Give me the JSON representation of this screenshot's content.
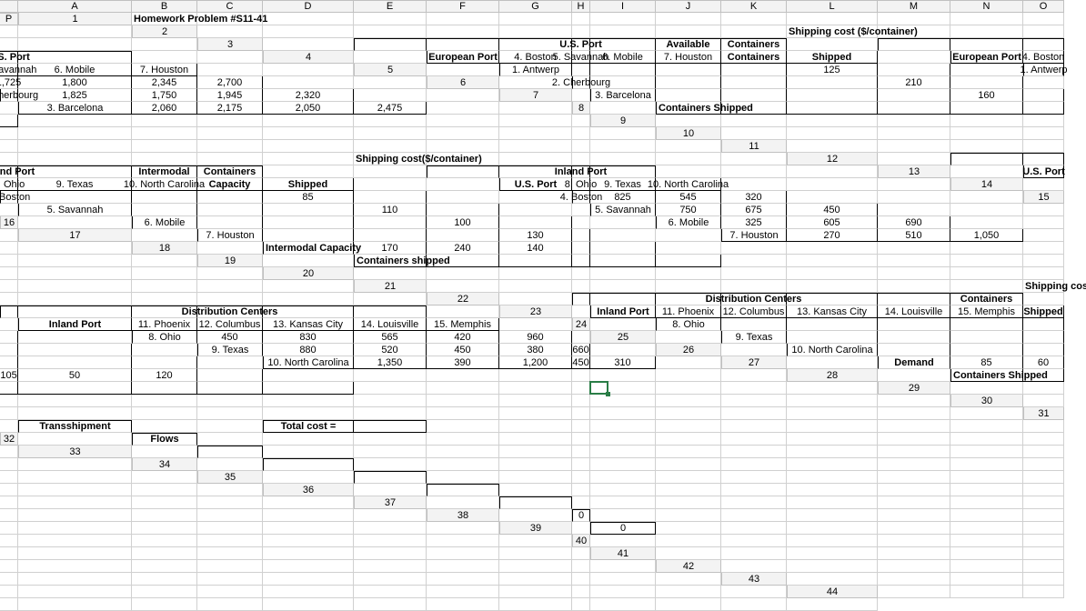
{
  "colHeaders": [
    "A",
    "B",
    "C",
    "D",
    "E",
    "F",
    "G",
    "H",
    "I",
    "J",
    "K",
    "L",
    "M",
    "N",
    "O",
    "P"
  ],
  "rowCount": 44,
  "title": "Homework Problem #S11-41",
  "activeCell": {
    "col": 8,
    "row": 30
  },
  "labels": {
    "europeanPort": "European Port",
    "usPort": "U.S. Port",
    "inlandPort": "Inland Port",
    "distCenters": "Distribution Centers",
    "available": "Available",
    "containers": "Containers",
    "shipped": "Shipped",
    "intermodal": "Intermodal",
    "capacity": "Capacity",
    "containersShipped": "Containers Shipped",
    "containersShippedLower": "Containers shipped",
    "intermodalCapacity": "Intermodal Capacity",
    "demand": "Demand",
    "transshipment": "Transshipment",
    "flows": "Flows",
    "totalCost": "Total cost =",
    "shipCost1": "Shipping cost ($/container)",
    "shipCost2": "Shipping cost($/container)"
  },
  "euroPorts": [
    "1. Antwerp",
    "2. Cherbourg",
    "3. Barcelona"
  ],
  "usPorts": [
    "4. Boston",
    "5. Savannah",
    "6. Mobile",
    "7. Houston"
  ],
  "inlandPorts": [
    "8. Ohio",
    "9. Texas",
    "10. North Carolina"
  ],
  "distCentersList": [
    "11. Phoenix",
    "12. Columbus",
    "13. Kansas City",
    "14. Louisville",
    "15. Memphis"
  ],
  "availableContainers": [
    "125",
    "210",
    "160"
  ],
  "intermodalCap": [
    "85",
    "110",
    "100",
    "130"
  ],
  "intermodalCapRow": [
    "170",
    "240",
    "140"
  ],
  "demandRow": [
    "85",
    "60",
    "105",
    "50",
    "120"
  ],
  "cost1": {
    "rows": [
      [
        "1,725",
        "1,800",
        "2,345",
        "2,700"
      ],
      [
        "1,825",
        "1,750",
        "1,945",
        "2,320"
      ],
      [
        "2,060",
        "2,175",
        "2,050",
        "2,475"
      ]
    ]
  },
  "cost2": {
    "rows": [
      [
        "825",
        "545",
        "320"
      ],
      [
        "750",
        "675",
        "450"
      ],
      [
        "325",
        "605",
        "690"
      ],
      [
        "270",
        "510",
        "1,050"
      ]
    ]
  },
  "cost3": {
    "rows": [
      [
        "450",
        "830",
        "565",
        "420",
        "960"
      ],
      [
        "880",
        "520",
        "450",
        "380",
        "660"
      ],
      [
        "1,350",
        "390",
        "1,200",
        "450",
        "310"
      ]
    ]
  },
  "flowsVals": [
    "0",
    "0"
  ]
}
